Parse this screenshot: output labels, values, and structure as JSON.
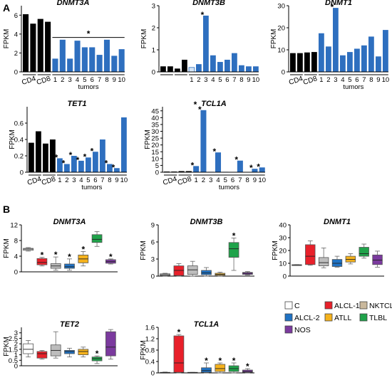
{
  "panels": {
    "a": "A",
    "b": "B"
  },
  "colors": {
    "normal": "#000000",
    "tumor": "#2e6fbf",
    "lightblue": "#d6e6f6"
  },
  "chart_data": [
    {
      "id": "a1",
      "type": "bar",
      "title": "DNMT3A",
      "ylabel": "FPKM",
      "ylim": [
        0,
        7
      ],
      "yticks": [
        0,
        2,
        4,
        6
      ],
      "values": [
        6.1,
        5.1,
        5.6,
        5.3,
        1.4,
        3.4,
        1.4,
        3.3,
        2.6,
        2.6,
        1.8,
        3.4,
        1.7,
        2.4
      ],
      "bar_colors": [
        "black",
        "black",
        "black",
        "black",
        "blue",
        "blue",
        "blue",
        "blue",
        "blue",
        "blue",
        "blue",
        "blue",
        "blue",
        "blue"
      ],
      "groups": [
        "CD4",
        "CD8"
      ],
      "tumor_labels": [
        "1",
        "2",
        "3",
        "4",
        "5",
        "6",
        "7",
        "8",
        "9",
        "10"
      ],
      "xlabel": "tumors",
      "star_over_line": "*"
    },
    {
      "id": "a2",
      "type": "bar",
      "title": "DNMT3B",
      "ylabel": "FPKM",
      "ylim": [
        0,
        3
      ],
      "yticks": [
        0,
        1,
        2,
        3
      ],
      "values": [
        0.25,
        0.25,
        0.15,
        0.55,
        0.2,
        0.35,
        2.55,
        0.75,
        0.45,
        0.55,
        0.85,
        0.3,
        0.25,
        0.25
      ],
      "bar_colors": [
        "black",
        "black",
        "black",
        "black",
        "light",
        "blue",
        "blue",
        "blue",
        "blue",
        "blue",
        "blue",
        "blue",
        "blue",
        "blue"
      ],
      "groups": [
        "",
        ""
      ],
      "tumor_labels": [
        "1",
        "2",
        "3",
        "4",
        "5",
        "6",
        "7",
        "8",
        "9",
        "10"
      ],
      "xlabel": "",
      "stars": [
        {
          "bar": 6,
          "text": "*"
        }
      ]
    },
    {
      "id": "a3",
      "type": "bar",
      "title": "DNMT1",
      "ylabel": "FPKM",
      "ylim": [
        0,
        30
      ],
      "yticks": [
        0,
        10,
        20,
        30
      ],
      "values": [
        8.5,
        8.5,
        8.8,
        9.0,
        17.5,
        11.5,
        29.0,
        7.5,
        9.0,
        10.5,
        12.0,
        16.0,
        7.0,
        19.0
      ],
      "bar_colors": [
        "black",
        "black",
        "black",
        "black",
        "blue",
        "blue",
        "blue",
        "blue",
        "blue",
        "blue",
        "blue",
        "blue",
        "blue",
        "blue"
      ],
      "groups": [
        "CD4",
        "CD8"
      ],
      "tumor_labels": [
        "1",
        "2",
        "3",
        "4",
        "5",
        "6",
        "7",
        "8",
        "9",
        "10"
      ],
      "xlabel": "tumors",
      "stars": [
        {
          "bar": 6,
          "text": "*"
        }
      ]
    },
    {
      "id": "a4",
      "type": "bar",
      "title": "TET1",
      "ylabel": "FPKM",
      "ylim": [
        0,
        0.8
      ],
      "yticks": [
        0,
        0.2,
        0.4,
        0.6
      ],
      "values": [
        0.36,
        0.5,
        0.35,
        0.4,
        0.17,
        0.1,
        0.2,
        0.14,
        0.18,
        0.25,
        0.4,
        0.1,
        0.05,
        0.67
      ],
      "bar_colors": [
        "black",
        "black",
        "black",
        "black",
        "blue",
        "blue",
        "blue",
        "blue",
        "blue",
        "blue",
        "blue",
        "blue",
        "blue",
        "blue"
      ],
      "groups": [
        "CD4",
        "CD8"
      ],
      "tumor_labels": [
        "1",
        "2",
        "3",
        "4",
        "5",
        "6",
        "7",
        "8",
        "9",
        "10"
      ],
      "xlabel": "tumors",
      "stars": [
        {
          "bar": 4,
          "text": "*"
        },
        {
          "bar": 5,
          "text": "*"
        },
        {
          "bar": 6,
          "text": "*"
        },
        {
          "bar": 7,
          "text": "*"
        },
        {
          "bar": 8,
          "text": "*"
        },
        {
          "bar": 9,
          "text": "*"
        },
        {
          "bar": 11,
          "text": "*"
        },
        {
          "bar": 12,
          "text": "*"
        }
      ]
    },
    {
      "id": "a5",
      "type": "bar",
      "title": "TCL1A",
      "ylabel": "FPKM",
      "ylim": [
        0,
        48
      ],
      "yticks": [
        0,
        5,
        10,
        15,
        20,
        25,
        30,
        35,
        40,
        45
      ],
      "values": [
        0.5,
        0.5,
        0.8,
        0.8,
        4.5,
        45.5,
        0.3,
        14.5,
        0.3,
        0.2,
        8.5,
        0.2,
        2.5,
        3.5
      ],
      "bar_colors": [
        "black",
        "black",
        "black",
        "black",
        "blue",
        "blue",
        "blue",
        "blue",
        "blue",
        "blue",
        "blue",
        "blue",
        "blue",
        "blue"
      ],
      "groups": [
        "CD4",
        "CD8"
      ],
      "tumor_labels": [
        "1",
        "2",
        "3",
        "4",
        "5",
        "6",
        "7",
        "8",
        "9",
        "10"
      ],
      "xlabel": "tumors",
      "stars": [
        {
          "bar": 4,
          "text": "*"
        },
        {
          "bar": 5,
          "text": "*"
        },
        {
          "bar": 7,
          "text": "*"
        },
        {
          "bar": 10,
          "text": "*"
        },
        {
          "bar": 12,
          "text": "*"
        },
        {
          "bar": 13,
          "text": "*"
        }
      ],
      "title_prefix": "*"
    },
    {
      "id": "b1",
      "type": "box",
      "title": "DNMT3A",
      "ylabel": "FPKM",
      "ylim": [
        0,
        12
      ],
      "yticks": [
        0,
        4,
        8,
        12
      ],
      "boxes": [
        {
          "g": "C",
          "min": 5.3,
          "q1": 5.5,
          "med": 5.8,
          "q3": 6.0,
          "max": 6.2
        },
        {
          "g": "ALCL-1",
          "min": 1.5,
          "q1": 1.8,
          "med": 2.4,
          "q3": 3.4,
          "max": 3.7
        },
        {
          "g": "NKTCL",
          "min": 0.4,
          "q1": 0.9,
          "med": 1.5,
          "q3": 2.1,
          "max": 3.8
        },
        {
          "g": "ALCL-2",
          "min": 0.4,
          "q1": 0.9,
          "med": 1.3,
          "q3": 2.0,
          "max": 3.3
        },
        {
          "g": "ATLL",
          "min": 1.5,
          "q1": 2.3,
          "med": 3.3,
          "q3": 4.3,
          "max": 5.2
        },
        {
          "g": "TLBL",
          "min": 6.5,
          "q1": 7.5,
          "med": 8.3,
          "q3": 9.5,
          "max": 10.3
        },
        {
          "g": "NOS",
          "min": 2.0,
          "q1": 2.2,
          "med": 2.6,
          "q3": 3.1,
          "max": 3.3
        }
      ],
      "stars": [
        1,
        2,
        3,
        4,
        6
      ]
    },
    {
      "id": "b2",
      "type": "box",
      "title": "DNMT3B",
      "ylabel": "FPKM",
      "ylim": [
        0,
        9
      ],
      "yticks": [
        0,
        3,
        6,
        9
      ],
      "boxes": [
        {
          "g": "C",
          "min": 0.0,
          "q1": 0.1,
          "med": 0.25,
          "q3": 0.4,
          "max": 0.5
        },
        {
          "g": "ALCL-1",
          "min": 0.0,
          "q1": 0.1,
          "med": 1.0,
          "q3": 1.8,
          "max": 2.2
        },
        {
          "g": "NKTCL",
          "min": 0.0,
          "q1": 0.3,
          "med": 1.1,
          "q3": 1.8,
          "max": 2.6
        },
        {
          "g": "ALCL-2",
          "min": 0.0,
          "q1": 0.25,
          "med": 0.55,
          "q3": 1.0,
          "max": 1.5
        },
        {
          "g": "ATLL",
          "min": 0.0,
          "q1": 0.15,
          "med": 0.3,
          "q3": 0.5,
          "max": 0.7
        },
        {
          "g": "TLBL",
          "min": 1.0,
          "q1": 3.3,
          "med": 4.8,
          "q3": 5.9,
          "max": 6.7
        },
        {
          "g": "NOS",
          "min": 0.2,
          "q1": 0.3,
          "med": 0.5,
          "q3": 0.65,
          "max": 0.8
        }
      ],
      "stars": [
        5
      ]
    },
    {
      "id": "b3",
      "type": "box",
      "title": "DNMT1",
      "ylabel": "FPKM",
      "ylim": [
        0,
        40
      ],
      "yticks": [
        0,
        10,
        20,
        30,
        40
      ],
      "boxes": [
        {
          "g": "C",
          "min": 8.5,
          "q1": 8.5,
          "med": 8.7,
          "q3": 8.9,
          "max": 9.0
        },
        {
          "g": "ALCL-1",
          "min": 8.5,
          "q1": 9.0,
          "med": 15.5,
          "q3": 24.5,
          "max": 27.5
        },
        {
          "g": "NKTCL",
          "min": 6.5,
          "q1": 8.0,
          "med": 10.5,
          "q3": 14.5,
          "max": 22.0
        },
        {
          "g": "ALCL-2",
          "min": 7.0,
          "q1": 7.5,
          "med": 10.0,
          "q3": 13.0,
          "max": 15.5
        },
        {
          "g": "ATLL",
          "min": 9.5,
          "q1": 11.0,
          "med": 13.0,
          "q3": 15.5,
          "max": 17.5
        },
        {
          "g": "TLBL",
          "min": 14.0,
          "q1": 15.5,
          "med": 17.5,
          "q3": 22.5,
          "max": 25.0
        },
        {
          "g": "NOS",
          "min": 7.0,
          "q1": 9.0,
          "med": 12.5,
          "q3": 16.5,
          "max": 19.5
        }
      ],
      "stars": []
    },
    {
      "id": "b4",
      "type": "box",
      "title": "TET2",
      "ylabel": "FPKM",
      "ylim": [
        0,
        3.5
      ],
      "yticks": [
        0,
        0.5,
        1,
        1.5,
        2,
        2.5,
        3
      ],
      "boxes": [
        {
          "g": "C",
          "min": 0.8,
          "q1": 1.1,
          "med": 1.5,
          "q3": 2.0,
          "max": 2.3
        },
        {
          "g": "ALCL-1",
          "min": 0.6,
          "q1": 0.7,
          "med": 1.1,
          "q3": 1.3,
          "max": 1.4
        },
        {
          "g": "NKTCL",
          "min": 0.7,
          "q1": 0.9,
          "med": 1.4,
          "q3": 1.9,
          "max": 3.1
        },
        {
          "g": "ALCL-2",
          "min": 0.8,
          "q1": 1.1,
          "med": 1.3,
          "q3": 1.4,
          "max": 1.6
        },
        {
          "g": "ATLL",
          "min": 0.8,
          "q1": 1.0,
          "med": 1.3,
          "q3": 1.5,
          "max": 1.7
        },
        {
          "g": "TLBL",
          "min": 0.2,
          "q1": 0.45,
          "med": 0.65,
          "q3": 0.8,
          "max": 0.9
        },
        {
          "g": "NOS",
          "min": 0.6,
          "q1": 0.9,
          "med": 1.7,
          "q3": 3.1,
          "max": 3.3
        }
      ],
      "stars": [
        5
      ]
    },
    {
      "id": "b5",
      "type": "box",
      "title": "TCL1A",
      "ylabel": "FPKM",
      "ylim": [
        0,
        1.6
      ],
      "yticks": [
        0,
        0.4,
        0.8,
        1.2,
        1.6
      ],
      "boxes": [
        {
          "g": "C",
          "min": 0.0,
          "q1": 0.0,
          "med": 0.01,
          "q3": 0.02,
          "max": 0.03
        },
        {
          "g": "ALCL-1",
          "min": 0.0,
          "q1": 0.02,
          "med": 0.35,
          "q3": 1.3,
          "max": 1.35
        },
        {
          "g": "NKTCL",
          "min": 0.0,
          "q1": 0.0,
          "med": 0.01,
          "q3": 0.02,
          "max": 0.02
        },
        {
          "g": "ALCL-2",
          "min": 0.0,
          "q1": 0.02,
          "med": 0.08,
          "q3": 0.18,
          "max": 0.35
        },
        {
          "g": "ATLL",
          "min": 0.0,
          "q1": 0.05,
          "med": 0.15,
          "q3": 0.3,
          "max": 0.35
        },
        {
          "g": "TLBL",
          "min": 0.0,
          "q1": 0.05,
          "med": 0.15,
          "q3": 0.25,
          "max": 0.35
        },
        {
          "g": "NOS",
          "min": 0.0,
          "q1": 0.02,
          "med": 0.05,
          "q3": 0.1,
          "max": 0.15
        }
      ],
      "stars": [
        1,
        3,
        4,
        5,
        6
      ]
    }
  ],
  "legend": [
    {
      "label": "C",
      "color": "#ffffff"
    },
    {
      "label": "ALCL-1",
      "color": "#e8202a"
    },
    {
      "label": "NKTCL",
      "color": "#c9b89c"
    },
    {
      "label": "ALCL-2",
      "color": "#1f72c4"
    },
    {
      "label": "ATLL",
      "color": "#f5b21c"
    },
    {
      "label": "TLBL",
      "color": "#1fa34a"
    },
    {
      "label": "NOS",
      "color": "#7b3a9e"
    }
  ],
  "box_colors": [
    "#ffffff",
    "#e8202a",
    "#bdbdbd",
    "#1f72c4",
    "#f5b21c",
    "#1fa34a",
    "#7b3a9e"
  ]
}
